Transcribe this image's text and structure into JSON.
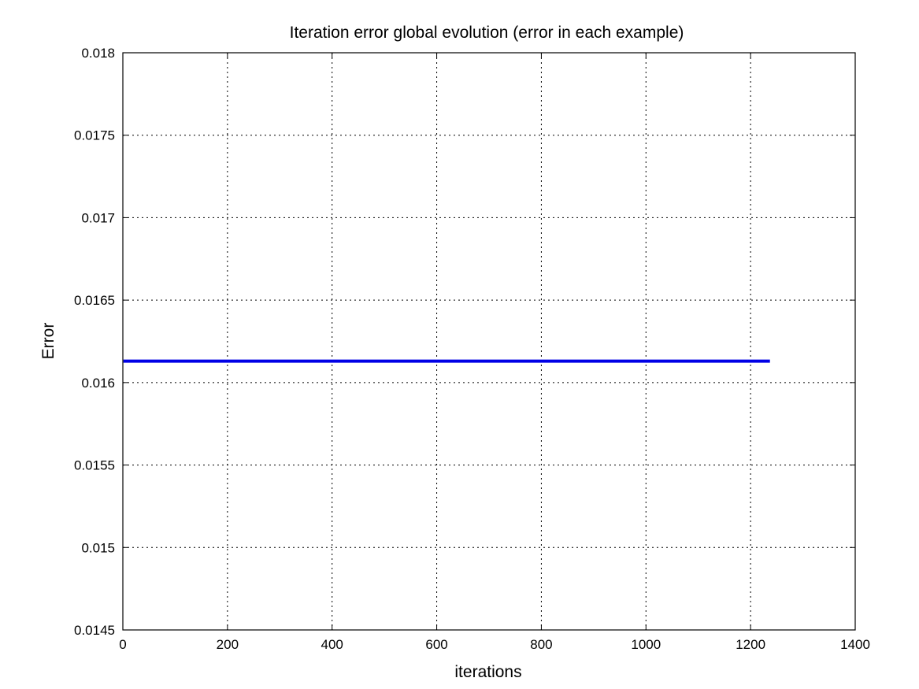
{
  "chart_data": {
    "type": "line",
    "title": "Iteration error global evolution (error in each example)",
    "xlabel": "iterations",
    "ylabel": "Error",
    "xlim": [
      0,
      1400
    ],
    "ylim": [
      0.0145,
      0.018
    ],
    "xticks": [
      0,
      200,
      400,
      600,
      800,
      1000,
      1200,
      1400
    ],
    "xtick_labels": [
      "0",
      "200",
      "400",
      "600",
      "800",
      "1000",
      "1200",
      "1400"
    ],
    "yticks": [
      0.0145,
      0.015,
      0.0155,
      0.016,
      0.0165,
      0.017,
      0.0175,
      0.018
    ],
    "ytick_labels": [
      "0.0145",
      "0.015",
      "0.0155",
      "0.016",
      "0.0165",
      "0.017",
      "0.0175",
      "0.018"
    ],
    "grid": true,
    "series": [
      {
        "color": "#0000e6",
        "x": [
          1,
          1237
        ],
        "y": [
          0.01613,
          0.01613
        ]
      }
    ]
  }
}
